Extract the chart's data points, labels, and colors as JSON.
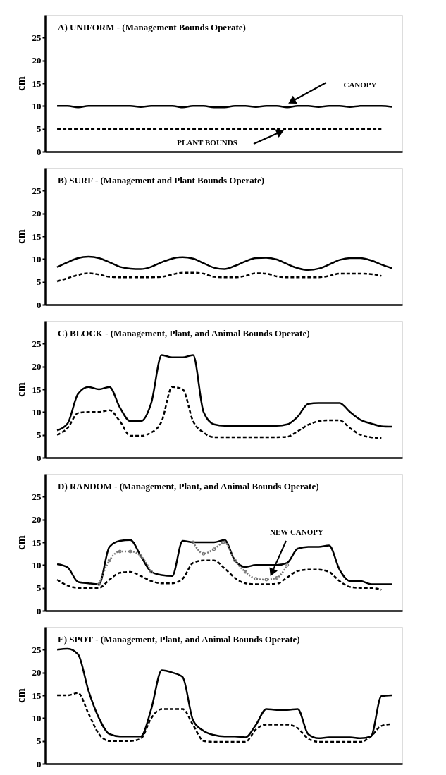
{
  "chart_data": [
    {
      "type": "line",
      "title": "A) UNIFORM - (Management Bounds Operate)",
      "ylabel": "cm",
      "categories": [
        null,
        null,
        null,
        null,
        null,
        null,
        null,
        null,
        null,
        null,
        null,
        null,
        null,
        null,
        null,
        null,
        null,
        null,
        null,
        null,
        null,
        null,
        null,
        null,
        null,
        null,
        null,
        null,
        null,
        null,
        null,
        null,
        null
      ],
      "ylim": [
        0,
        30
      ],
      "yticks": [
        0,
        5,
        10,
        15,
        20,
        25
      ],
      "tick_labels": "y",
      "annotations": [
        "CANOPY",
        "PLANT BOUNDS"
      ],
      "series": [
        {
          "color": "#000000",
          "line_style": "solid",
          "values": [
            10,
            10,
            9.7,
            10,
            10,
            10,
            10,
            10,
            9.8,
            10,
            10,
            10,
            9.7,
            10,
            10,
            9.7,
            9.7,
            10,
            10,
            9.8,
            10,
            10,
            9.7,
            10,
            10,
            9.8,
            10,
            10,
            9.8,
            10,
            10,
            10,
            9.8
          ]
        },
        {
          "color": "#000000",
          "line_style": "dashed",
          "values": [
            5,
            5,
            5,
            5,
            5,
            5,
            5,
            5,
            5,
            5,
            5,
            5,
            5,
            5,
            5,
            5,
            5,
            5,
            5,
            5,
            5,
            5,
            5,
            5,
            5,
            5,
            5,
            5,
            5,
            5,
            5,
            5,
            null
          ]
        }
      ]
    },
    {
      "type": "line",
      "title": "B) SURF - (Management and Plant Bounds Operate)",
      "ylabel": "cm",
      "categories": [
        null,
        null,
        null,
        null,
        null,
        null,
        null,
        null,
        null,
        null,
        null,
        null,
        null,
        null,
        null,
        null,
        null,
        null,
        null,
        null,
        null,
        null,
        null,
        null,
        null,
        null,
        null,
        null,
        null,
        null,
        null,
        null,
        null
      ],
      "ylim": [
        0,
        30
      ],
      "yticks": [
        0,
        5,
        10,
        15,
        20,
        25
      ],
      "tick_labels": "y",
      "series": [
        {
          "color": "#000000",
          "line_style": "solid",
          "values": [
            8.2,
            9.3,
            10.2,
            10.5,
            10.2,
            9.3,
            8.3,
            7.9,
            7.8,
            8.3,
            9.3,
            10.1,
            10.4,
            10.1,
            9.1,
            8.1,
            7.8,
            8.5,
            9.5,
            10.2,
            10.3,
            9.9,
            8.9,
            8,
            7.6,
            7.9,
            8.8,
            9.8,
            10.2,
            10.2,
            9.7,
            8.8,
            8
          ]
        },
        {
          "color": "#000000",
          "line_style": "dashed",
          "values": [
            5.1,
            5.8,
            6.5,
            6.9,
            6.6,
            6.1,
            6,
            6,
            6,
            6,
            6.1,
            6.6,
            7,
            7,
            6.8,
            6.1,
            6,
            6,
            6.3,
            6.9,
            6.8,
            6.2,
            6,
            6,
            6,
            6,
            6.3,
            6.8,
            6.8,
            6.8,
            6.7,
            6.3,
            null
          ]
        }
      ]
    },
    {
      "type": "line",
      "title": "C) BLOCK - (Management, Plant, and Animal Bounds Operate)",
      "ylabel": "cm",
      "categories": [
        null,
        null,
        null,
        null,
        null,
        null,
        null,
        null,
        null,
        null,
        null,
        null,
        null,
        null,
        null,
        null,
        null,
        null,
        null,
        null,
        null,
        null,
        null,
        null,
        null,
        null,
        null,
        null,
        null,
        null,
        null,
        null,
        null
      ],
      "ylim": [
        0,
        30
      ],
      "yticks": [
        0,
        5,
        10,
        15,
        20,
        25
      ],
      "tick_labels": "y",
      "series": [
        {
          "color": "#000000",
          "line_style": "solid",
          "values": [
            6,
            7.5,
            14,
            15.5,
            15,
            15.5,
            11,
            8,
            8,
            12,
            22.5,
            22,
            22,
            22.5,
            10,
            7.3,
            7,
            7,
            7,
            7,
            7,
            7,
            7.3,
            9,
            11.8,
            12,
            12,
            12,
            10,
            8.3,
            7.5,
            6.9,
            6.8
          ]
        },
        {
          "color": "#000000",
          "line_style": "dashed",
          "values": [
            5,
            6.5,
            9.8,
            10,
            10,
            10.4,
            8,
            4.8,
            4.8,
            5.5,
            8,
            15.5,
            15,
            8,
            5.5,
            4.5,
            4.5,
            4.5,
            4.5,
            4.5,
            4.5,
            4.5,
            4.6,
            5.8,
            7.2,
            8,
            8.2,
            8.2,
            6.5,
            5,
            4.5,
            4.3,
            null
          ]
        }
      ]
    },
    {
      "type": "line",
      "title": "D) RANDOM - (Management, Plant, and Animal Bounds Operate)",
      "ylabel": "cm",
      "categories": [
        null,
        null,
        null,
        null,
        null,
        null,
        null,
        null,
        null,
        null,
        null,
        null,
        null,
        null,
        null,
        null,
        null,
        null,
        null,
        null,
        null,
        null,
        null,
        null,
        null,
        null,
        null,
        null,
        null,
        null,
        null,
        null,
        null
      ],
      "ylim": [
        0,
        30
      ],
      "yticks": [
        0,
        5,
        10,
        15,
        20,
        25
      ],
      "tick_labels": "y",
      "annotations": [
        "NEW CANOPY"
      ],
      "series": [
        {
          "color": "#000000",
          "line_style": "solid",
          "values": [
            10.2,
            9.5,
            6.3,
            6,
            5.8,
            14,
            15.3,
            15.5,
            12,
            8.5,
            7.8,
            7.6,
            15.3,
            15,
            15,
            15,
            15.5,
            11,
            9.6,
            10,
            10,
            10,
            10.5,
            13.6,
            14,
            14,
            14.3,
            9,
            6.5,
            6.5,
            5.8,
            5.8,
            5.8
          ]
        },
        {
          "color": "#000000",
          "line_style": "dashed",
          "values": [
            6.8,
            5.5,
            5,
            5,
            5,
            6.8,
            8.3,
            8.5,
            7.6,
            6.5,
            6,
            6,
            7,
            10.5,
            11,
            11,
            9.3,
            7.2,
            6,
            5.8,
            5.8,
            5.9,
            7.3,
            8.7,
            9,
            9,
            8.5,
            6.5,
            5.2,
            5,
            5,
            4.6,
            null
          ]
        },
        {
          "color": "#777777",
          "line_style": "dotted",
          "marker": "circle",
          "values": [
            null,
            null,
            null,
            null,
            5.8,
            11,
            13,
            13,
            12,
            8.5,
            null,
            null,
            null,
            15,
            12.5,
            13.5,
            15,
            11,
            8.5,
            7,
            6.8,
            7.2,
            10,
            null,
            null,
            null,
            null,
            null,
            null,
            null,
            null,
            null,
            null
          ]
        }
      ]
    },
    {
      "type": "line",
      "title": "E) SPOT - (Management, Plant, and Animal Bounds Operate)",
      "ylabel": "cm",
      "categories": [
        null,
        null,
        null,
        null,
        null,
        null,
        null,
        null,
        null,
        null,
        null,
        null,
        null,
        null,
        null,
        null,
        null,
        null,
        null,
        null,
        null,
        null,
        null,
        null,
        null,
        null,
        null,
        null,
        null,
        null,
        null,
        null,
        null
      ],
      "ylim": [
        0,
        30
      ],
      "yticks": [
        0,
        5,
        10,
        15,
        20,
        25
      ],
      "tick_labels": "y",
      "series": [
        {
          "color": "#000000",
          "line_style": "solid",
          "values": [
            25,
            25.2,
            24,
            16,
            10,
            6.5,
            6,
            6,
            6,
            12,
            20.5,
            20,
            19,
            9.5,
            7.2,
            6.3,
            6,
            6,
            5.8,
            8.5,
            12,
            11.8,
            11.8,
            12,
            6.5,
            5.6,
            5.8,
            5.8,
            5.8,
            5.6,
            6,
            14.8,
            15
          ]
        },
        {
          "color": "#000000",
          "line_style": "dashed",
          "values": [
            15,
            15,
            15.5,
            11,
            6.5,
            5,
            5,
            5,
            5.5,
            10,
            12,
            12,
            12,
            8.5,
            5,
            4.8,
            4.8,
            4.8,
            4.8,
            7.5,
            8.6,
            8.6,
            8.6,
            7.8,
            5.5,
            4.8,
            4.8,
            4.8,
            4.8,
            4.8,
            6,
            8.3,
            8.7
          ]
        }
      ]
    }
  ]
}
